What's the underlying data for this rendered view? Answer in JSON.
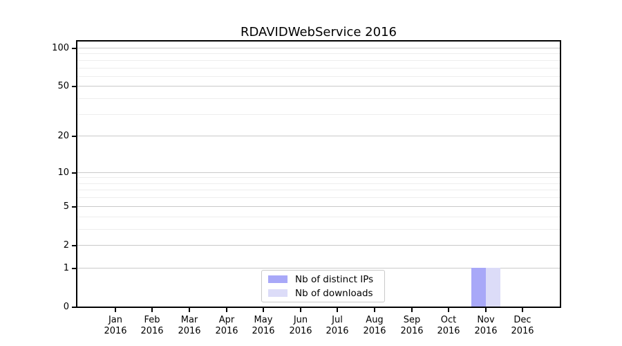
{
  "chart_data": {
    "type": "bar",
    "title": "RDAVIDWebService 2016",
    "categories": [
      {
        "month": "Jan",
        "year": "2016"
      },
      {
        "month": "Feb",
        "year": "2016"
      },
      {
        "month": "Mar",
        "year": "2016"
      },
      {
        "month": "Apr",
        "year": "2016"
      },
      {
        "month": "May",
        "year": "2016"
      },
      {
        "month": "Jun",
        "year": "2016"
      },
      {
        "month": "Jul",
        "year": "2016"
      },
      {
        "month": "Aug",
        "year": "2016"
      },
      {
        "month": "Sep",
        "year": "2016"
      },
      {
        "month": "Oct",
        "year": "2016"
      },
      {
        "month": "Nov",
        "year": "2016"
      },
      {
        "month": "Dec",
        "year": "2016"
      }
    ],
    "series": [
      {
        "name": "Nb of distinct IPs",
        "color": "#a8a8f8",
        "values": [
          0,
          0,
          0,
          0,
          0,
          0,
          0,
          0,
          0,
          0,
          1,
          0
        ]
      },
      {
        "name": "Nb of downloads",
        "color": "#dcdcf8",
        "values": [
          0,
          0,
          0,
          0,
          0,
          0,
          0,
          0,
          0,
          0,
          1,
          0
        ]
      }
    ],
    "xlabel": "",
    "ylabel": "",
    "y_scale": "log1p",
    "ylim": [
      0,
      112
    ],
    "yticks": [
      0,
      1,
      2,
      5,
      10,
      20,
      50,
      100
    ],
    "yticks_minor": [
      3,
      4,
      6,
      7,
      8,
      9,
      30,
      40,
      60,
      70,
      80,
      90
    ],
    "grid": "horizontal",
    "legend_position": "lower center"
  },
  "colors": {
    "background": "#ffffff",
    "spine": "#000000",
    "grid_major": "#c9c9c9",
    "grid_minor": "#ededed",
    "text": "#000000"
  }
}
